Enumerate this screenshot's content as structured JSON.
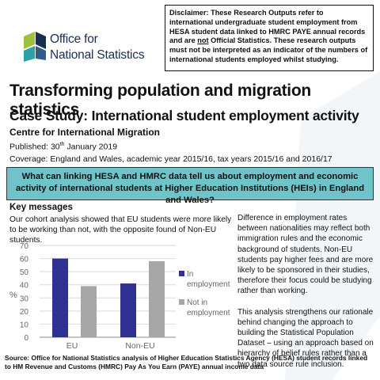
{
  "disclaimer": {
    "part1": "Disclaimer: These Research Outputs refer to international undergraduate student employment from HESA student data linked to HMRC PAYE annual records and are ",
    "not": "not",
    "part2": " Official Statistics. These research outputs must not be interpreted as an indicator of the numbers of international students employed whilst studying."
  },
  "logo": {
    "line1": "Office for",
    "line2": "National Statistics"
  },
  "title": "Transforming population and migration statistics",
  "subtitle": "Case Study: International student employment activity",
  "centre": "Centre for International Migration",
  "published": {
    "label": "Published: 30",
    "sup": "th",
    "rest": " January 2019"
  },
  "coverage": "Coverage: England and Wales, academic year 2015/16, tax years 2015/16 and 2016/17",
  "question": "What can linking HESA and HMRC data tell us about employment and economic activity of international students at Higher Education Institutions (HEIs) in England and Wales?",
  "key_messages": {
    "heading": "Key messages",
    "cohort": "Our cohort analysis showed that EU students were more likely to be working than not, with the opposite found of Non-EU students."
  },
  "right_text": {
    "p1": "Difference in employment rates between nationalities may reflect both immigration rules and the economic background of students. Non-EU students pay higher fees and are more likely to be sponsored in their studies, therefore their focus could be studying rather than working.",
    "p2": "This analysis strengthens our rationale behind changing the approach to building the Statistical Population Dataset – using an approach based on hierarchy of belief rules rather than a two data source rule inclusion."
  },
  "chart_data": {
    "type": "bar",
    "categories": [
      "EU",
      "Non-EU"
    ],
    "series": [
      {
        "name": "In employment",
        "values": [
          60,
          41
        ],
        "color": "#2e3192"
      },
      {
        "name": "Not in employment",
        "values": [
          39,
          58
        ],
        "color": "#a6a6a6"
      }
    ],
    "ylabel": "%",
    "ylim": [
      0,
      70
    ],
    "yticks": [
      "0",
      "10",
      "20",
      "30",
      "40",
      "50",
      "60",
      "70"
    ],
    "grid": true,
    "legend_position": "right"
  },
  "source": "Source: Office for National Statistics analysis of Higher Education Statistics Agency (HESA) student records linked to HM Revenue and Customs (HMRC) Pay As You Earn (PAYE) annual income data",
  "colors": {
    "question_bg": "#6fc3c9",
    "logo_navy": "#1a2e52",
    "logo_green": "#9cc13c",
    "logo_teal": "#2ba0a6"
  }
}
